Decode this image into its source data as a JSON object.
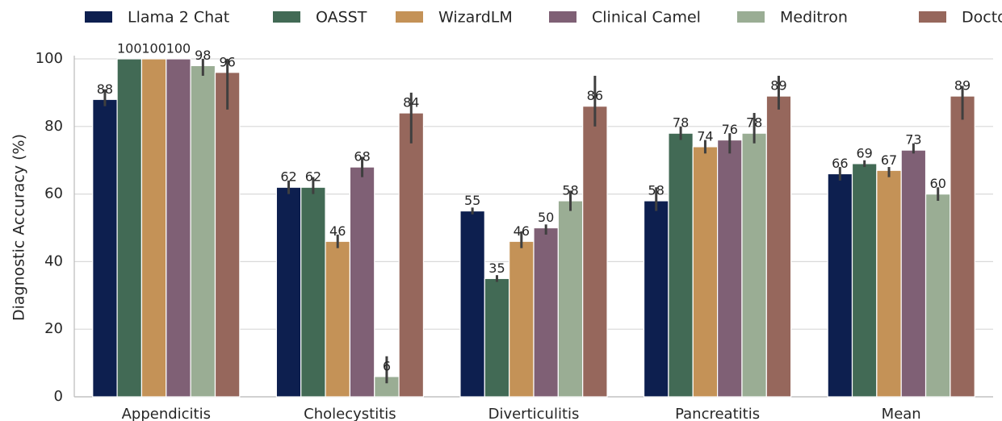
{
  "chart_data": {
    "type": "bar",
    "y_label": "Diagnostic Accuracy (%)",
    "categories": [
      "Appendicitis",
      "Cholecystitis",
      "Diverticulitis",
      "Pancreatitis",
      "Mean"
    ],
    "series": [
      {
        "name": "Llama 2 Chat",
        "color": "#0d1f4f",
        "values": [
          88,
          62,
          55,
          58,
          66
        ],
        "ci": [
          [
            86,
            91
          ],
          [
            60,
            64
          ],
          [
            54,
            56
          ],
          [
            55,
            62
          ],
          [
            64,
            68
          ]
        ]
      },
      {
        "name": "OASST",
        "color": "#426a55",
        "values": [
          100,
          62,
          35,
          78,
          69
        ],
        "ci": [
          [
            100,
            100
          ],
          [
            60,
            65
          ],
          [
            34,
            36
          ],
          [
            76,
            80
          ],
          [
            68,
            70
          ]
        ]
      },
      {
        "name": "WizardLM",
        "color": "#c49257",
        "values": [
          100,
          46,
          46,
          74,
          67
        ],
        "ci": [
          [
            100,
            100
          ],
          [
            44,
            48
          ],
          [
            44,
            49
          ],
          [
            72,
            76
          ],
          [
            65,
            68
          ]
        ]
      },
      {
        "name": "Clinical Camel",
        "color": "#7f6075",
        "values": [
          100,
          68,
          50,
          76,
          73
        ],
        "ci": [
          [
            100,
            100
          ],
          [
            65,
            71
          ],
          [
            48,
            51
          ],
          [
            72,
            78
          ],
          [
            72,
            75
          ]
        ]
      },
      {
        "name": "Meditron",
        "color": "#9aad94",
        "values": [
          98,
          6,
          58,
          78,
          60
        ],
        "ci": [
          [
            95,
            100
          ],
          [
            4,
            12
          ],
          [
            55,
            61
          ],
          [
            75,
            84
          ],
          [
            58,
            62
          ]
        ]
      },
      {
        "name": "Doctors",
        "color": "#96675c",
        "values": [
          96,
          84,
          86,
          89,
          89
        ],
        "ci": [
          [
            85,
            100
          ],
          [
            75,
            90
          ],
          [
            80,
            95
          ],
          [
            85,
            95
          ],
          [
            82,
            92
          ]
        ]
      }
    ],
    "ylim": [
      0,
      100
    ],
    "yticks": [
      0,
      20,
      40,
      60,
      80,
      100
    ],
    "grid": true,
    "legend": "top"
  }
}
